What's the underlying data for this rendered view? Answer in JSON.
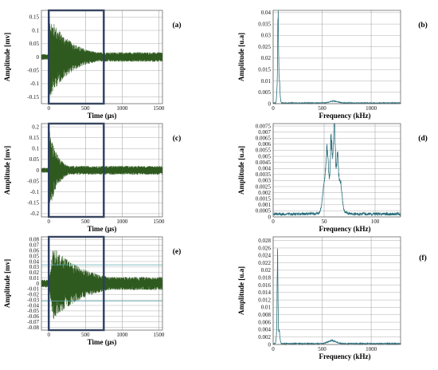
{
  "figure": {
    "colors": {
      "time_signal": "#2f5a1f",
      "spectrum": "#2a6f7c",
      "highlight_box": "#2b3f63",
      "grid": "#9a9a9a",
      "ref_line": "#5aa9b3"
    }
  },
  "chart_data": [
    {
      "id": "a",
      "type": "line",
      "panel_label": "(a)",
      "kind": "time",
      "xlabel": "Time (µs)",
      "ylabel": "Amplitude [mv]",
      "xlim": [
        -100,
        1550
      ],
      "ylim": [
        -0.175,
        0.175
      ],
      "xticks": [
        0,
        500,
        1000,
        1500
      ],
      "xtick_labels": [
        "0",
        "500",
        "1000",
        "1500"
      ],
      "yticks": [
        0.15,
        0.1,
        0.05,
        0,
        -0.05,
        -0.1,
        -0.15
      ],
      "ytick_labels": [
        "0.15",
        "0.1",
        "0.05",
        "0",
        "-0.05",
        "-0.1",
        "-0.15"
      ],
      "highlight_x": [
        0,
        750
      ],
      "signal": {
        "onset": 0,
        "peak": 0.16,
        "decay": 300,
        "floor": 0.018,
        "osc": 30
      }
    },
    {
      "id": "b",
      "type": "line",
      "panel_label": "(b)",
      "kind": "spectrum",
      "xlabel": "Frequency (kHz)",
      "ylabel": "Amplitude [u.a]",
      "xlim": [
        0,
        1300
      ],
      "ylim": [
        0,
        0.041
      ],
      "xticks": [
        0,
        500,
        1000
      ],
      "xtick_labels": [
        "0",
        "500",
        "1000"
      ],
      "yticks": [
        0.04,
        0.035,
        0.03,
        0.025,
        0.02,
        0.015,
        0.01,
        0.005,
        0
      ],
      "ytick_labels": [
        "0.04",
        "0.035",
        "0.03",
        "0.025",
        "0.02",
        "0.015",
        "0.01",
        "0.005",
        "0"
      ],
      "peaks": [
        [
          50,
          0.0405,
          4
        ],
        [
          60,
          0.013,
          8
        ],
        [
          40,
          0.006,
          5
        ],
        [
          620,
          0.0009,
          40
        ]
      ],
      "baseline": 0.0004
    },
    {
      "id": "c",
      "type": "line",
      "panel_label": "(c)",
      "kind": "time",
      "xlabel": "Time (µs)",
      "ylabel": "Amplitude [mv]",
      "xlim": [
        -100,
        1550
      ],
      "ylim": [
        -0.215,
        0.215
      ],
      "xticks": [
        0,
        500,
        1000,
        1500
      ],
      "xtick_labels": [
        "0",
        "500",
        "1000",
        "1500"
      ],
      "yticks": [
        0.2,
        0.15,
        0.1,
        0.05,
        0,
        -0.05,
        -0.1,
        -0.15,
        -0.2
      ],
      "ytick_labels": [
        "0.2",
        "0.15",
        "0.1",
        "0.05",
        "0",
        "-0.05",
        "-0.1",
        "-0.15",
        "-0.2"
      ],
      "highlight_x": [
        0,
        750
      ],
      "signal": {
        "onset": 0,
        "peak": 0.2,
        "decay": 120,
        "floor": 0.02,
        "osc": 30
      }
    },
    {
      "id": "d",
      "type": "line",
      "panel_label": "(d)",
      "kind": "spectrum",
      "xlabel": "Frequency (kHz)",
      "ylabel": "Amplitude [u.a]",
      "xlim": [
        0,
        125
      ],
      "ylim": [
        0,
        0.0077
      ],
      "xticks": [
        0,
        50,
        100
      ],
      "xtick_labels": [
        "0",
        "50",
        "100"
      ],
      "yticks": [
        0.0075,
        0.007,
        0.0065,
        0.006,
        0.0055,
        0.005,
        0.0045,
        0.004,
        0.0035,
        0.003,
        0.0025,
        0.002,
        0.0015,
        0.001,
        0.0005,
        0
      ],
      "ytick_labels": [
        "0.0075",
        "0.007",
        "0.0065",
        "0.006",
        "0.0055",
        "0.005",
        "0.0045",
        "0.004",
        "0.0035",
        "0.003",
        "0.0025",
        "0.002",
        "0.0015",
        "0.001",
        "0.0005",
        "0"
      ],
      "peaks": [
        [
          60,
          0.0073,
          0.9
        ],
        [
          57,
          0.0052,
          1.0
        ],
        [
          53,
          0.0045,
          1.2
        ],
        [
          63,
          0.004,
          1.0
        ],
        [
          66,
          0.0022,
          1.5
        ],
        [
          50,
          0.002,
          1.5
        ],
        [
          58,
          0.0018,
          6
        ]
      ],
      "baseline": 0.0003
    },
    {
      "id": "e",
      "type": "line",
      "panel_label": "(e)",
      "kind": "time",
      "xlabel": "Time (µs)",
      "ylabel": "Amplitude [mv]",
      "xlim": [
        -100,
        1550
      ],
      "ylim": [
        -0.085,
        0.085
      ],
      "xticks": [
        0,
        500,
        1000,
        1500
      ],
      "xtick_labels": [
        "0",
        "500",
        "1000",
        "1500"
      ],
      "yticks": [
        0.08,
        0.07,
        0.06,
        0.05,
        0.04,
        0.03,
        0.02,
        0.01,
        0,
        -0.01,
        -0.02,
        -0.03,
        -0.04,
        -0.05,
        -0.06,
        -0.07,
        -0.08
      ],
      "ytick_labels": [
        "0.08",
        "0.07",
        "0.06",
        "0.05",
        "0.04",
        "0.03",
        "0.02",
        "0.01",
        "0",
        "-0.01",
        "-0.02",
        "-0.03",
        "-0.04",
        "-0.05",
        "-0.06",
        "-0.07",
        "-0.08"
      ],
      "highlight_x": [
        0,
        750
      ],
      "ref_lines": [
        0.034,
        -0.032
      ],
      "signal": {
        "onset": 0,
        "peak": 0.076,
        "decay": 450,
        "floor": 0.012,
        "osc": 25,
        "rise": 60
      }
    },
    {
      "id": "f",
      "type": "line",
      "panel_label": "(f)",
      "kind": "spectrum",
      "xlabel": "Frequency (kHz)",
      "ylabel": "Amplitude [u.a]",
      "xlim": [
        0,
        1300
      ],
      "ylim": [
        0,
        0.029
      ],
      "xticks": [
        0,
        500,
        1000
      ],
      "xtick_labels": [
        "0",
        "500",
        "1000"
      ],
      "yticks": [
        0.028,
        0.026,
        0.024,
        0.022,
        0.02,
        0.018,
        0.016,
        0.014,
        0.012,
        0.01,
        0.008,
        0.006,
        0.004,
        0.002,
        0
      ],
      "ytick_labels": [
        "0.028",
        "0.026",
        "0.024",
        "0.022",
        "0.02",
        "0.018",
        "0.016",
        "0.014",
        "0.012",
        "0.01",
        "0.008",
        "0.006",
        "0.004",
        "0.002",
        "0"
      ],
      "peaks": [
        [
          45,
          0.0285,
          4
        ],
        [
          60,
          0.004,
          8
        ],
        [
          35,
          0.0025,
          5
        ],
        [
          600,
          0.0009,
          40
        ]
      ],
      "baseline": 0.0003
    }
  ]
}
